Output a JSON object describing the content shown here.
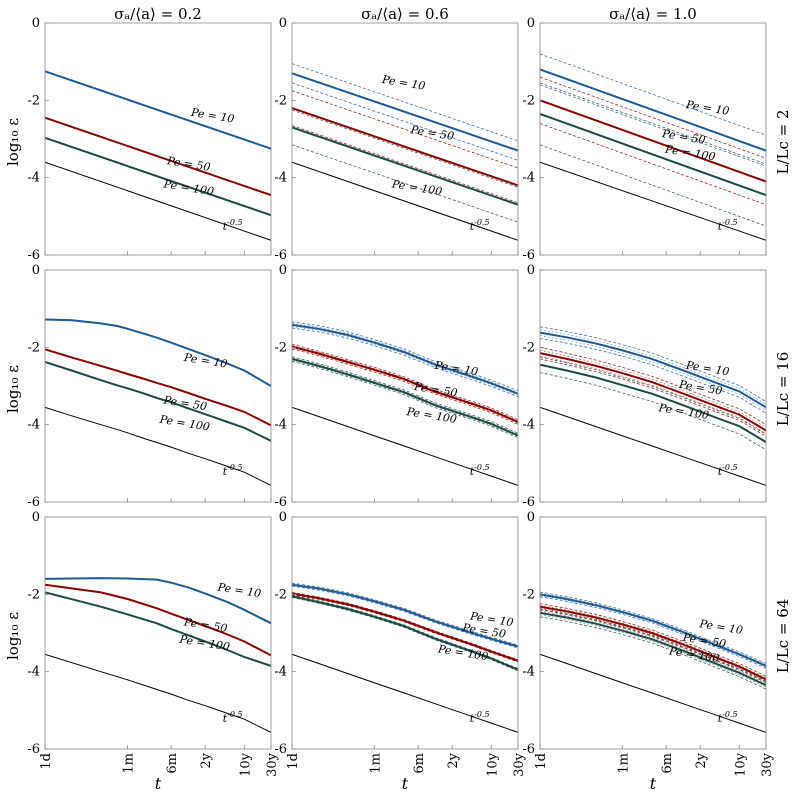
{
  "colors": {
    "pe10": "#1f5a96",
    "pe50": "#8b0000",
    "pe100": "#1c4a45",
    "ref": "#000000",
    "frame": "#888888"
  },
  "figure": {
    "col_titles": [
      "σₐ/⟨a⟩ = 0.2",
      "σₐ/⟨a⟩ = 0.6",
      "σₐ/⟨a⟩ = 1.0"
    ],
    "row_labels": [
      "L/Lc = 2",
      "L/Lc = 16",
      "L/Lc = 64"
    ],
    "ylabel": "log₁₀ ε",
    "xlabel": "t",
    "ref_label": "t^-0.5",
    "yticks": [
      "0",
      "-2",
      "-4",
      "-6"
    ],
    "xticks": [
      "1d",
      "1m",
      "6m",
      "2y",
      "10y",
      "30y"
    ]
  },
  "chart_data": [
    {
      "type": "line",
      "row": 0,
      "col": 0,
      "xscale": "log",
      "xlim": [
        1,
        10950
      ],
      "ylim": [
        -6,
        0
      ],
      "x": [
        1,
        10950
      ],
      "series": [
        {
          "name": "Pe = 10",
          "values": [
            -1.25,
            -3.25
          ],
          "spread": 0.0
        },
        {
          "name": "Pe = 50",
          "values": [
            -2.45,
            -4.45
          ],
          "spread": 0.0
        },
        {
          "name": "Pe = 100",
          "values": [
            -2.97,
            -4.97
          ],
          "spread": 0.0
        },
        {
          "name": "t^-0.5",
          "values": [
            -3.6,
            -5.62
          ]
        }
      ],
      "labels": [
        {
          "text": "Pe = 10",
          "x": 400,
          "y": -2.4
        },
        {
          "text": "Pe = 50",
          "x": 150,
          "y": -3.65
        },
        {
          "text": "Pe = 100",
          "x": 130,
          "y": -4.25
        },
        {
          "text": "t^-0.5",
          "x": 1500,
          "y": -5.35
        }
      ]
    },
    {
      "type": "line",
      "row": 0,
      "col": 1,
      "xscale": "log",
      "xlim": [
        1,
        10950
      ],
      "ylim": [
        -6,
        0
      ],
      "x": [
        1,
        10950
      ],
      "series": [
        {
          "name": "Pe = 10",
          "values": [
            -1.3,
            -3.3
          ],
          "spread": 0.25
        },
        {
          "name": "Pe = 50",
          "values": [
            -2.2,
            -4.2
          ],
          "spread": 0.45
        },
        {
          "name": "Pe = 100",
          "values": [
            -2.7,
            -4.7
          ],
          "spread": 0.45
        },
        {
          "name": "t^-0.5",
          "values": [
            -3.6,
            -5.62
          ]
        }
      ],
      "labels": [
        {
          "text": "Pe = 10",
          "x": 40,
          "y": -1.55
        },
        {
          "text": "Pe = 50",
          "x": 130,
          "y": -2.85
        },
        {
          "text": "Pe = 100",
          "x": 60,
          "y": -4.25
        },
        {
          "text": "t^-0.5",
          "x": 1500,
          "y": -5.35
        }
      ]
    },
    {
      "type": "line",
      "row": 0,
      "col": 2,
      "xscale": "log",
      "xlim": [
        1,
        10950
      ],
      "ylim": [
        -6,
        0
      ],
      "x": [
        1,
        10950
      ],
      "series": [
        {
          "name": "Pe = 10",
          "values": [
            -1.2,
            -3.3
          ],
          "spread": 0.4
        },
        {
          "name": "Pe = 50",
          "values": [
            -2.0,
            -4.1
          ],
          "spread": 0.6
        },
        {
          "name": "Pe = 100",
          "values": [
            -2.35,
            -4.45
          ],
          "spread": 0.8
        },
        {
          "name": "t^-0.5",
          "values": [
            -3.6,
            -5.62
          ]
        }
      ],
      "labels": [
        {
          "text": "Pe = 10",
          "x": 400,
          "y": -2.2
        },
        {
          "text": "Pe = 50",
          "x": 150,
          "y": -2.95
        },
        {
          "text": "Pe = 100",
          "x": 170,
          "y": -3.35
        },
        {
          "text": "t^-0.5",
          "x": 1500,
          "y": -5.35
        }
      ]
    },
    {
      "type": "line",
      "row": 1,
      "col": 0,
      "xscale": "log",
      "xlim": [
        1,
        10950
      ],
      "ylim": [
        -6,
        0
      ],
      "x": [
        1,
        3,
        10,
        20,
        30,
        60,
        100,
        180,
        365,
        730,
        1825,
        3650,
        10950
      ],
      "series": [
        {
          "name": "Pe = 10",
          "values": [
            -1.28,
            -1.3,
            -1.38,
            -1.45,
            -1.52,
            -1.65,
            -1.75,
            -1.88,
            -2.04,
            -2.2,
            -2.42,
            -2.6,
            -3.0
          ],
          "spread": 0.0
        },
        {
          "name": "Pe = 50",
          "values": [
            -2.05,
            -2.26,
            -2.48,
            -2.61,
            -2.69,
            -2.82,
            -2.92,
            -3.03,
            -3.18,
            -3.33,
            -3.52,
            -3.67,
            -4.02
          ],
          "spread": 0.0
        },
        {
          "name": "Pe = 100",
          "values": [
            -2.38,
            -2.6,
            -2.85,
            -2.99,
            -3.06,
            -3.2,
            -3.31,
            -3.42,
            -3.58,
            -3.73,
            -3.93,
            -4.08,
            -4.42
          ],
          "spread": 0.0
        },
        {
          "name": "t^-0.5",
          "values": [
            -3.55,
            -3.77,
            -4.0,
            -4.13,
            -4.21,
            -4.36,
            -4.46,
            -4.58,
            -4.74,
            -4.88,
            -5.08,
            -5.23,
            -5.57
          ]
        }
      ],
      "labels": [
        {
          "text": "Pe = 10",
          "x": 300,
          "y": -2.35
        },
        {
          "text": "Pe = 50",
          "x": 130,
          "y": -3.45
        },
        {
          "text": "Pe = 100",
          "x": 110,
          "y": -3.95
        },
        {
          "text": "t^-0.5",
          "x": 1500,
          "y": -5.3
        }
      ]
    },
    {
      "type": "line",
      "row": 1,
      "col": 1,
      "xscale": "log",
      "xlim": [
        1,
        10950
      ],
      "ylim": [
        -6,
        0
      ],
      "x": [
        1,
        3,
        10,
        30,
        100,
        365,
        1825,
        3650,
        10950
      ],
      "series": [
        {
          "name": "Pe = 10",
          "values": [
            -1.42,
            -1.52,
            -1.68,
            -1.88,
            -2.12,
            -2.45,
            -2.78,
            -2.93,
            -3.2
          ],
          "spread": 0.08
        },
        {
          "name": "Pe = 50",
          "values": [
            -1.98,
            -2.16,
            -2.38,
            -2.58,
            -2.82,
            -3.15,
            -3.48,
            -3.63,
            -3.93
          ],
          "spread": 0.06
        },
        {
          "name": "Pe = 100",
          "values": [
            -2.3,
            -2.48,
            -2.7,
            -2.92,
            -3.16,
            -3.5,
            -3.83,
            -3.98,
            -4.28
          ],
          "spread": 0.06
        },
        {
          "name": "t^-0.5",
          "values": [
            -3.55,
            -3.79,
            -4.05,
            -4.29,
            -4.55,
            -4.83,
            -5.18,
            -5.33,
            -5.57
          ]
        }
      ],
      "labels": [
        {
          "text": "Pe = 10",
          "x": 350,
          "y": -2.55
        },
        {
          "text": "Pe = 50",
          "x": 150,
          "y": -3.1
        },
        {
          "text": "Pe = 100",
          "x": 110,
          "y": -3.75
        },
        {
          "text": "t^-0.5",
          "x": 1500,
          "y": -5.3
        }
      ]
    },
    {
      "type": "line",
      "row": 1,
      "col": 2,
      "xscale": "log",
      "xlim": [
        1,
        10950
      ],
      "ylim": [
        -6,
        0
      ],
      "x": [
        1,
        3,
        10,
        30,
        100,
        365,
        1825,
        3650,
        10950
      ],
      "series": [
        {
          "name": "Pe = 10",
          "values": [
            -1.62,
            -1.74,
            -1.9,
            -2.08,
            -2.3,
            -2.6,
            -2.98,
            -3.14,
            -3.55
          ],
          "spread": 0.15
        },
        {
          "name": "Pe = 50",
          "values": [
            -2.15,
            -2.3,
            -2.48,
            -2.67,
            -2.9,
            -3.2,
            -3.58,
            -3.74,
            -4.15
          ],
          "spread": 0.15
        },
        {
          "name": "Pe = 100",
          "values": [
            -2.45,
            -2.6,
            -2.78,
            -2.98,
            -3.2,
            -3.5,
            -3.88,
            -4.04,
            -4.45
          ],
          "spread": 0.2
        },
        {
          "name": "t^-0.5",
          "values": [
            -3.55,
            -3.79,
            -4.05,
            -4.29,
            -4.55,
            -4.83,
            -5.18,
            -5.33,
            -5.57
          ]
        }
      ],
      "labels": [
        {
          "text": "Pe = 10",
          "x": 400,
          "y": -2.55
        },
        {
          "text": "Pe = 50",
          "x": 300,
          "y": -3.05
        },
        {
          "text": "Pe = 100",
          "x": 130,
          "y": -3.65
        },
        {
          "text": "t^-0.5",
          "x": 1500,
          "y": -5.3
        }
      ]
    },
    {
      "type": "line",
      "row": 2,
      "col": 0,
      "xscale": "log",
      "xlim": [
        1,
        10950
      ],
      "ylim": [
        -6,
        0
      ],
      "x": [
        1,
        10,
        30,
        100,
        180,
        365,
        730,
        1825,
        3650,
        10950
      ],
      "series": [
        {
          "name": "Pe = 10",
          "values": [
            -1.6,
            -1.58,
            -1.59,
            -1.62,
            -1.7,
            -1.82,
            -1.98,
            -2.2,
            -2.4,
            -2.75
          ],
          "spread": 0.0
        },
        {
          "name": "Pe = 50",
          "values": [
            -1.75,
            -1.95,
            -2.12,
            -2.36,
            -2.5,
            -2.66,
            -2.82,
            -3.04,
            -3.22,
            -3.58
          ],
          "spread": 0.0
        },
        {
          "name": "Pe = 100",
          "values": [
            -1.95,
            -2.32,
            -2.52,
            -2.75,
            -2.9,
            -3.06,
            -3.22,
            -3.44,
            -3.62,
            -3.85
          ],
          "spread": 0.0
        },
        {
          "name": "t^-0.5",
          "values": [
            -3.55,
            -4.0,
            -4.21,
            -4.46,
            -4.58,
            -4.74,
            -4.88,
            -5.08,
            -5.23,
            -5.57
          ]
        }
      ],
      "labels": [
        {
          "text": "Pe = 10",
          "x": 1200,
          "y": -1.9
        },
        {
          "text": "Pe = 50",
          "x": 300,
          "y": -2.8
        },
        {
          "text": "Pe = 100",
          "x": 250,
          "y": -3.25
        },
        {
          "text": "t^-0.5",
          "x": 1500,
          "y": -5.3
        }
      ]
    },
    {
      "type": "line",
      "row": 2,
      "col": 1,
      "xscale": "log",
      "xlim": [
        1,
        10950
      ],
      "ylim": [
        -6,
        0
      ],
      "x": [
        1,
        3,
        10,
        30,
        100,
        365,
        1825,
        3650,
        10950
      ],
      "series": [
        {
          "name": "Pe = 10",
          "values": [
            -1.75,
            -1.85,
            -2.0,
            -2.18,
            -2.4,
            -2.7,
            -3.02,
            -3.15,
            -3.35
          ],
          "spread": 0.04
        },
        {
          "name": "Pe = 50",
          "values": [
            -1.98,
            -2.1,
            -2.26,
            -2.45,
            -2.68,
            -2.98,
            -3.32,
            -3.48,
            -3.72
          ],
          "spread": 0.03
        },
        {
          "name": "Pe = 100",
          "values": [
            -2.05,
            -2.2,
            -2.38,
            -2.58,
            -2.82,
            -3.15,
            -3.5,
            -3.66,
            -3.95
          ],
          "spread": 0.03
        },
        {
          "name": "t^-0.5",
          "values": [
            -3.55,
            -3.79,
            -4.05,
            -4.29,
            -4.55,
            -4.83,
            -5.18,
            -5.33,
            -5.57
          ]
        }
      ],
      "labels": [
        {
          "text": "Pe = 10",
          "x": 1500,
          "y": -2.65
        },
        {
          "text": "Pe = 50",
          "x": 1100,
          "y": -2.95
        },
        {
          "text": "Pe = 100",
          "x": 400,
          "y": -3.5
        },
        {
          "text": "t^-0.5",
          "x": 1500,
          "y": -5.3
        }
      ]
    },
    {
      "type": "line",
      "row": 2,
      "col": 2,
      "xscale": "log",
      "xlim": [
        1,
        10950
      ],
      "ylim": [
        -6,
        0
      ],
      "x": [
        1,
        3,
        10,
        30,
        100,
        365,
        1825,
        3650,
        10950
      ],
      "series": [
        {
          "name": "Pe = 10",
          "values": [
            -2.0,
            -2.12,
            -2.28,
            -2.46,
            -2.68,
            -2.98,
            -3.38,
            -3.55,
            -3.85
          ],
          "spread": 0.06
        },
        {
          "name": "Pe = 50",
          "values": [
            -2.32,
            -2.44,
            -2.6,
            -2.78,
            -3.0,
            -3.3,
            -3.7,
            -3.87,
            -4.2
          ],
          "spread": 0.08
        },
        {
          "name": "Pe = 100",
          "values": [
            -2.48,
            -2.6,
            -2.76,
            -2.94,
            -3.16,
            -3.46,
            -3.86,
            -4.03,
            -4.35
          ],
          "spread": 0.1
        },
        {
          "name": "t^-0.5",
          "values": [
            -3.55,
            -3.79,
            -4.05,
            -4.29,
            -4.55,
            -4.83,
            -5.18,
            -5.33,
            -5.57
          ]
        }
      ],
      "labels": [
        {
          "text": "Pe = 10",
          "x": 700,
          "y": -2.85
        },
        {
          "text": "Pe = 50",
          "x": 350,
          "y": -3.2
        },
        {
          "text": "Pe = 100",
          "x": 200,
          "y": -3.55
        },
        {
          "text": "t^-0.5",
          "x": 1500,
          "y": -5.3
        }
      ]
    }
  ]
}
